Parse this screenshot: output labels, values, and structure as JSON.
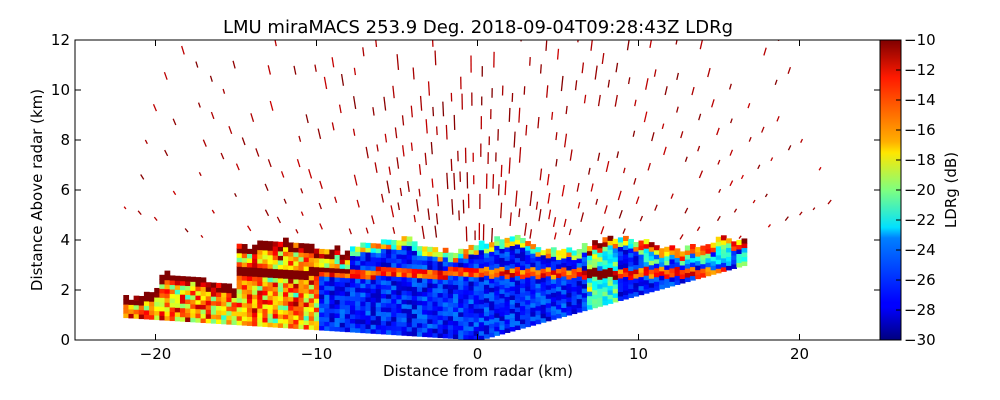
{
  "chart_data": {
    "type": "heatmap",
    "title": "LMU miraMACS 253.9 Deg. 2018-09-04T09:28:43Z  LDRg",
    "xlabel": "Distance from radar (km)",
    "ylabel": "Distance Above radar  (km)",
    "xlim": [
      -25,
      25
    ],
    "ylim": [
      0,
      12
    ],
    "x_ticks": [
      -20,
      -10,
      0,
      10,
      20
    ],
    "y_ticks": [
      0,
      2,
      4,
      6,
      8,
      10,
      12
    ],
    "colorbar": {
      "label": "LDRg (dB)",
      "range": [
        -30,
        -10
      ],
      "ticks": [
        -30,
        -28,
        -26,
        -24,
        -22,
        -20,
        -18,
        -16,
        -14,
        -12,
        -10
      ],
      "colormap": "jet"
    },
    "grid": false,
    "scan": {
      "left_edge_end_x": -22,
      "left_edge_end_y": 0.9,
      "right_edge_end_x": 16.5,
      "right_edge_end_y": 3.0,
      "max_range_km": 22.5
    },
    "layers": [
      {
        "description": "low LDR cloud core",
        "ldr": -28,
        "y_from": 0.9,
        "y_to": 3.8
      },
      {
        "description": "melting layer bright band",
        "ldr": -15,
        "y_from": 2.45,
        "y_to": 2.75
      },
      {
        "description": "cloud top edge",
        "ldr": -20,
        "y_from": 3.6,
        "y_to": 4.1
      },
      {
        "description": "far-range high LDR region",
        "ldr": -13,
        "x_from": -22,
        "x_to": -10
      },
      {
        "description": "sparse noise speckle",
        "ldr": -10,
        "y_from": 0.8,
        "y_to": 12
      }
    ]
  }
}
